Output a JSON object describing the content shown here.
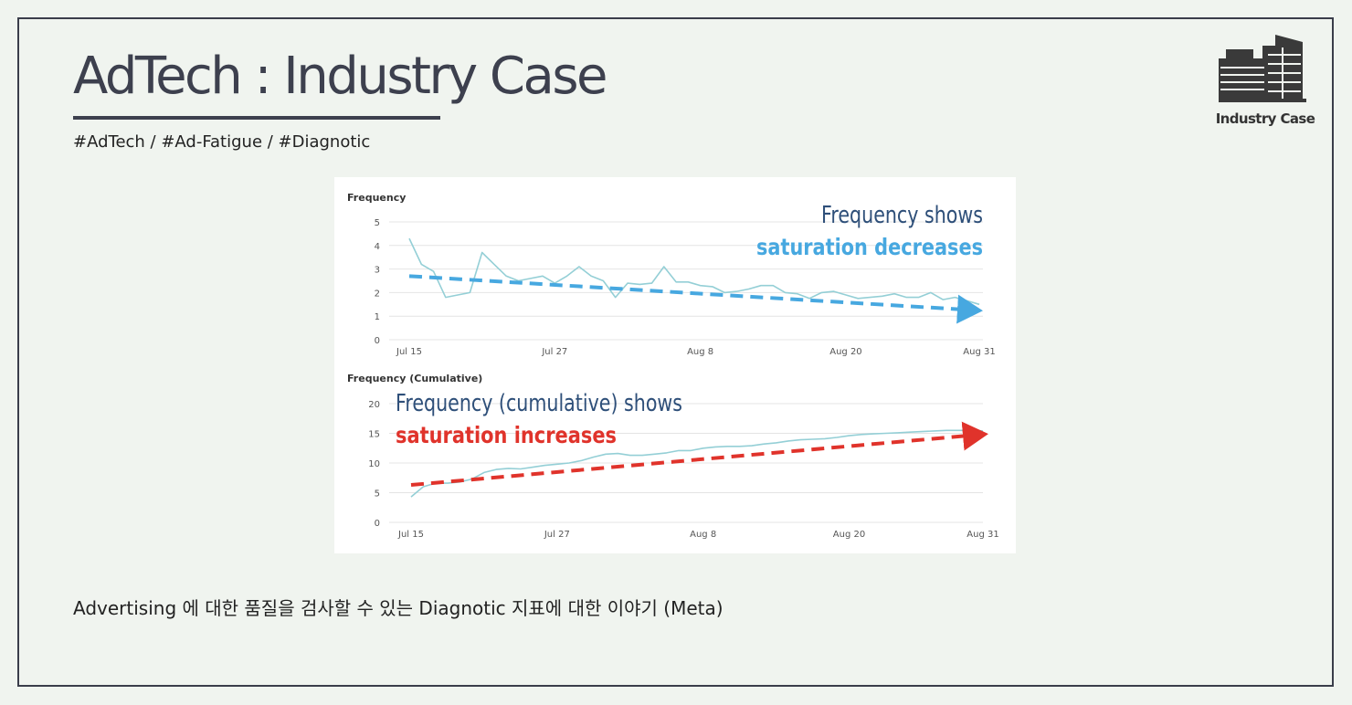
{
  "header": {
    "title": "AdTech : Industry Case",
    "tags": "#AdTech / #Ad-Fatigue / #Diagnotic"
  },
  "logo": {
    "icon": "building-icon",
    "label": "Industry Case"
  },
  "caption": "Advertising 에 대한 품질을 검사할 수 있는 Diagnotic 지표에 대한 이야기 (Meta)",
  "colors": {
    "background": "#f0f4ef",
    "text_dark": "#3d404e",
    "series_line": "#94cfd6",
    "trend_blue": "#47a8e0",
    "trend_red": "#e0332b",
    "annotation_navy": "#2e4f79"
  },
  "chart_data": [
    {
      "type": "line",
      "title": "Frequency",
      "x": [
        "Jul 15",
        "Jul 16",
        "Jul 17",
        "Jul 18",
        "Jul 19",
        "Jul 20",
        "Jul 21",
        "Jul 22",
        "Jul 23",
        "Jul 24",
        "Jul 25",
        "Jul 26",
        "Jul 27",
        "Jul 28",
        "Jul 29",
        "Jul 30",
        "Jul 31",
        "Aug 1",
        "Aug 2",
        "Aug 3",
        "Aug 4",
        "Aug 5",
        "Aug 6",
        "Aug 7",
        "Aug 8",
        "Aug 9",
        "Aug 10",
        "Aug 11",
        "Aug 12",
        "Aug 13",
        "Aug 14",
        "Aug 15",
        "Aug 16",
        "Aug 17",
        "Aug 18",
        "Aug 19",
        "Aug 20",
        "Aug 21",
        "Aug 22",
        "Aug 23",
        "Aug 24",
        "Aug 25",
        "Aug 26",
        "Aug 27",
        "Aug 28",
        "Aug 29",
        "Aug 30",
        "Aug 31"
      ],
      "xticks": [
        "Jul 15",
        "Jul 27",
        "Aug 8",
        "Aug 20",
        "Aug 31"
      ],
      "yticks": [
        0,
        1,
        2,
        3,
        4,
        5
      ],
      "ylim": [
        0,
        5
      ],
      "series": [
        {
          "name": "Frequency",
          "values": [
            4.3,
            3.2,
            2.9,
            1.8,
            1.9,
            2.0,
            3.7,
            3.2,
            2.7,
            2.5,
            2.6,
            2.7,
            2.4,
            2.7,
            3.1,
            2.7,
            2.5,
            1.8,
            2.4,
            2.35,
            2.4,
            3.1,
            2.45,
            2.45,
            2.3,
            2.25,
            2.0,
            2.05,
            2.15,
            2.3,
            2.3,
            2.0,
            1.95,
            1.75,
            2.0,
            2.05,
            1.9,
            1.75,
            1.8,
            1.85,
            1.95,
            1.8,
            1.8,
            2.0,
            1.7,
            1.8,
            1.65,
            1.5
          ]
        }
      ],
      "trend": {
        "from": 2.7,
        "to": 1.25,
        "style": "dashed-arrow"
      },
      "annotation": {
        "line1": "Frequency shows",
        "line2": "saturation decreases"
      }
    },
    {
      "type": "line",
      "title": "Frequency (Cumulative)",
      "x": [
        "Jul 15",
        "Jul 16",
        "Jul 17",
        "Jul 18",
        "Jul 19",
        "Jul 20",
        "Jul 21",
        "Jul 22",
        "Jul 23",
        "Jul 24",
        "Jul 25",
        "Jul 26",
        "Jul 27",
        "Jul 28",
        "Jul 29",
        "Jul 30",
        "Jul 31",
        "Aug 1",
        "Aug 2",
        "Aug 3",
        "Aug 4",
        "Aug 5",
        "Aug 6",
        "Aug 7",
        "Aug 8",
        "Aug 9",
        "Aug 10",
        "Aug 11",
        "Aug 12",
        "Aug 13",
        "Aug 14",
        "Aug 15",
        "Aug 16",
        "Aug 17",
        "Aug 18",
        "Aug 19",
        "Aug 20",
        "Aug 21",
        "Aug 22",
        "Aug 23",
        "Aug 24",
        "Aug 25",
        "Aug 26",
        "Aug 27",
        "Aug 28",
        "Aug 29",
        "Aug 30",
        "Aug 31"
      ],
      "xticks": [
        "Jul 15",
        "Jul 27",
        "Aug 8",
        "Aug 20",
        "Aug 31"
      ],
      "yticks": [
        0,
        5,
        10,
        15,
        20
      ],
      "ylim": [
        0,
        20
      ],
      "series": [
        {
          "name": "Frequency (Cumulative)",
          "values": [
            4.3,
            6.0,
            6.6,
            6.6,
            6.8,
            7.3,
            8.4,
            8.9,
            9.1,
            9.0,
            9.3,
            9.6,
            9.8,
            10.0,
            10.4,
            11.0,
            11.5,
            11.6,
            11.3,
            11.3,
            11.5,
            11.7,
            12.1,
            12.1,
            12.5,
            12.7,
            12.8,
            12.8,
            12.9,
            13.2,
            13.4,
            13.7,
            13.9,
            14.0,
            14.1,
            14.3,
            14.6,
            14.8,
            14.9,
            15.0,
            15.1,
            15.2,
            15.3,
            15.4,
            15.5,
            15.5,
            15.5,
            15.4
          ]
        }
      ],
      "trend": {
        "from": 6.3,
        "to": 14.8,
        "style": "dashed-arrow"
      },
      "annotation": {
        "line1": "Frequency (cumulative) shows",
        "line2": "saturation increases"
      }
    }
  ]
}
